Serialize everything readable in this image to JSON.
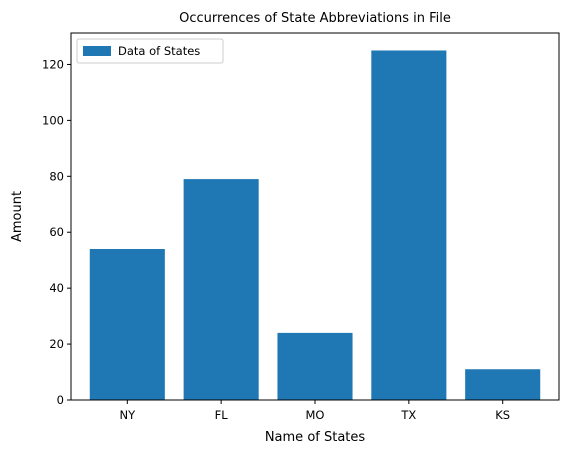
{
  "chart_data": {
    "type": "bar",
    "title": "Occurrences of State Abbreviations in File",
    "xlabel": "Name of States",
    "ylabel": "Amount",
    "categories": [
      "NY",
      "FL",
      "MO",
      "TX",
      "KS"
    ],
    "series": [
      {
        "name": "Data of States",
        "values": [
          54,
          79,
          24,
          125,
          11
        ],
        "color": "#1f77b4"
      }
    ],
    "ylim": [
      0,
      131.25
    ],
    "yticks": [
      0,
      20,
      40,
      60,
      80,
      100,
      120
    ],
    "grid": false,
    "legend_position": "top-left"
  }
}
